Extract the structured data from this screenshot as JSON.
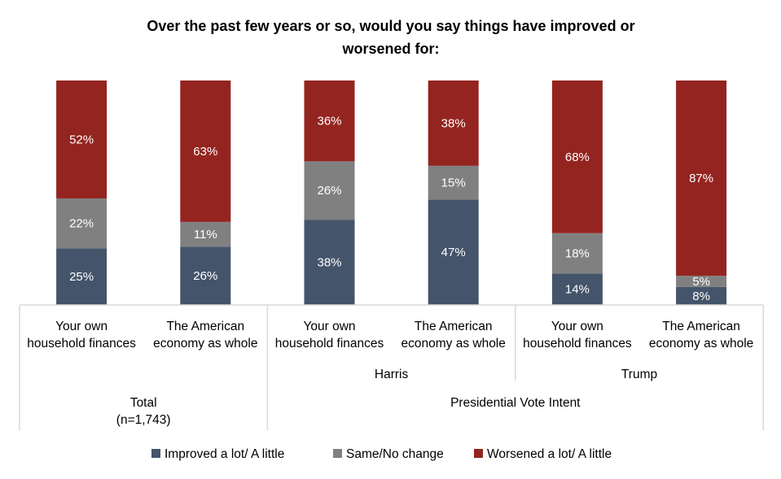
{
  "chart_data": {
    "type": "bar",
    "stacked": true,
    "title_lines": [
      "Over the past few years or so, would you say things have improved or",
      "worsened for:"
    ],
    "categories": [
      {
        "label": [
          "Your own",
          "household finances"
        ],
        "group": "Total"
      },
      {
        "label": [
          "The American",
          "economy as whole"
        ],
        "group": "Total"
      },
      {
        "label": [
          "Your own",
          "household finances"
        ],
        "group": "Harris"
      },
      {
        "label": [
          "The American",
          "economy as whole"
        ],
        "group": "Harris"
      },
      {
        "label": [
          "Your own",
          "household finances"
        ],
        "group": "Trump"
      },
      {
        "label": [
          "The American",
          "economy as whole"
        ],
        "group": "Trump"
      }
    ],
    "subgroups": [
      "Harris",
      "Trump"
    ],
    "groups": [
      {
        "label": [
          "Total",
          "(n=1,743)"
        ]
      },
      {
        "label": [
          "Presidential Vote Intent"
        ]
      }
    ],
    "series": [
      {
        "name": "Improved a lot/ A little",
        "color": "#44546A",
        "values": [
          25,
          26,
          38,
          47,
          14,
          8
        ]
      },
      {
        "name": "Same/No change",
        "color": "#808080",
        "values": [
          22,
          11,
          26,
          15,
          18,
          5
        ]
      },
      {
        "name": "Worsened a lot/ A little",
        "color": "#942420",
        "values": [
          52,
          63,
          36,
          38,
          68,
          87
        ]
      }
    ],
    "value_suffix": "%",
    "ylim": [
      0,
      100
    ],
    "grid": false,
    "legend_position": "bottom"
  }
}
